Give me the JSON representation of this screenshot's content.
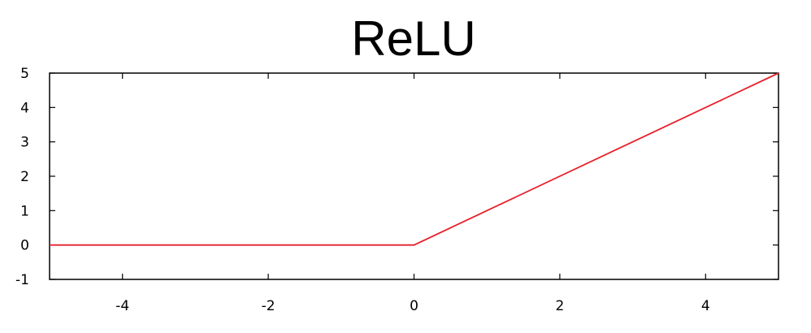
{
  "chart_data": {
    "type": "line",
    "title": "ReLU",
    "xlabel": "",
    "ylabel": "",
    "xlim": [
      -5,
      5
    ],
    "ylim": [
      -1,
      5
    ],
    "x_ticks": [
      -4,
      -2,
      0,
      2,
      4
    ],
    "y_ticks": [
      -1,
      0,
      1,
      2,
      3,
      4,
      5
    ],
    "grid": false,
    "series": [
      {
        "color": "#e8202a",
        "x": [
          -5,
          0,
          5
        ],
        "y": [
          0,
          0,
          5
        ]
      }
    ]
  }
}
